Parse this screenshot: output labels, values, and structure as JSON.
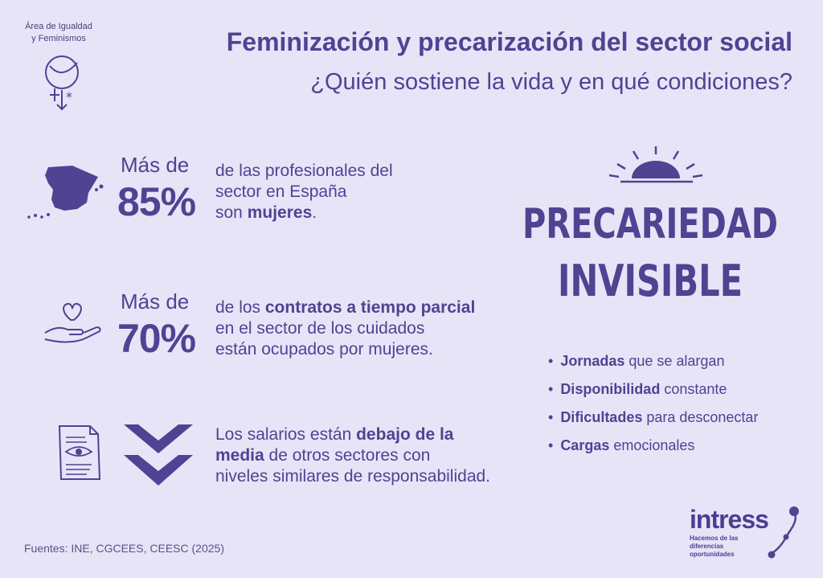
{
  "header": {
    "area_line1": "Área de Igualdad",
    "area_line2": "y Feminismos",
    "title": "Feminización y precarización del sector social",
    "subtitle": "¿Quién sostiene la vida y en qué condiciones?"
  },
  "stats": [
    {
      "icon": "spain-map-icon",
      "prefix": "Más de",
      "value": "85%",
      "text_line1": "de las profesionales del",
      "text_line2": "sector en España",
      "text_line3_plain": "son ",
      "text_line3_bold": "mujeres",
      "text_line3_end": "."
    },
    {
      "icon": "heart-hand-icon",
      "prefix": "Más de",
      "value": "70%",
      "text_line1_plain": "de los ",
      "text_line1_bold": "contratos a tiempo parcial",
      "text_line2": "en el sector de los cuidados",
      "text_line3": "están ocupados por mujeres."
    },
    {
      "icon": "document-eye-icon",
      "text_line1_plain": "Los salarios están ",
      "text_line1_bold": "debajo de la",
      "text_line2_bold": "media",
      "text_line2_plain": " de otros sectores con",
      "text_line3": "niveles similares de responsabilidad."
    }
  ],
  "headline": {
    "line1": "PRECARIEDAD",
    "line2": "INVISIBLE"
  },
  "bullets": [
    {
      "bold": "Jornadas",
      "plain": " que se alargan"
    },
    {
      "bold": "Disponibilidad",
      "plain": " constante"
    },
    {
      "bold": "Dificultades",
      "plain": " para desconectar"
    },
    {
      "bold": "Cargas",
      "plain": " emocionales"
    }
  ],
  "footer": {
    "sources": "Fuentes: INE, CGCEES, CEESC (2025)",
    "logo_name": "intress",
    "logo_tag_line1": "Hacemos de las diferencias",
    "logo_tag_line2": "oportunidades"
  },
  "colors": {
    "background": "#e8e4f8",
    "primary": "#4f4392",
    "dark": "#3f3470"
  }
}
